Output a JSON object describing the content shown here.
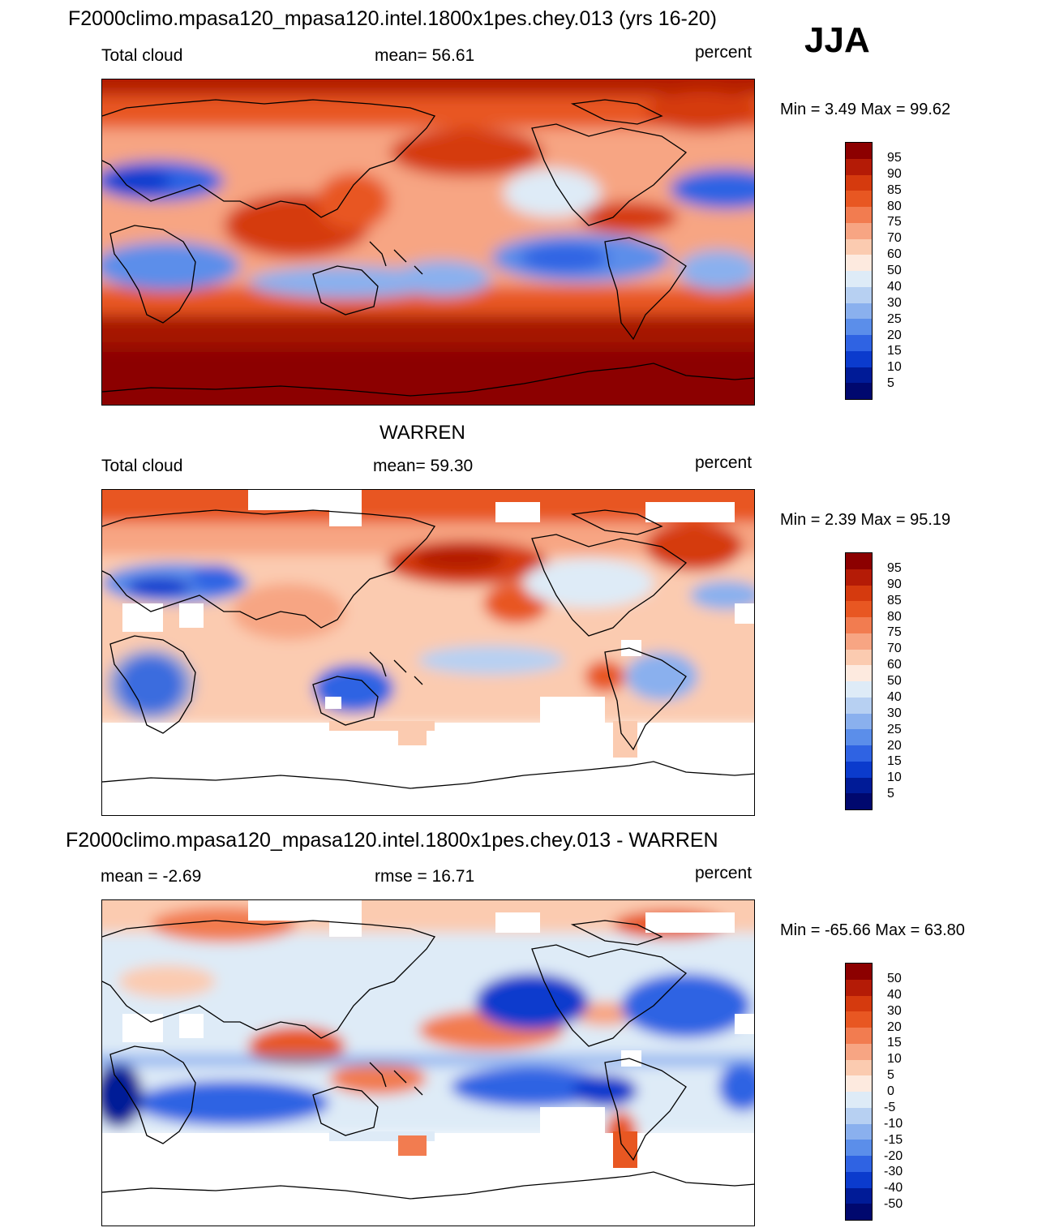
{
  "header": {
    "title": "F2000climo.mpasa120_mpasa120.intel.1800x1pes.chey.013 (yrs 16-20)",
    "season": "JJA"
  },
  "panels": [
    {
      "id": "model",
      "variable": "Total cloud",
      "stat": "mean=  56.61",
      "units": "percent",
      "minmax": "Min =   3.49 Max =  99.62"
    },
    {
      "id": "obs",
      "title": "WARREN",
      "variable": "Total cloud",
      "stat": "mean=  59.30",
      "units": "percent",
      "minmax": "Min =   2.39 Max =  95.19"
    },
    {
      "id": "diff",
      "title": "F2000climo.mpasa120_mpasa120.intel.1800x1pes.chey.013 - WARREN",
      "stat": "mean =  -2.69",
      "stat2": "rmse =  16.71",
      "units": "percent",
      "minmax": "Min = -65.66 Max =  63.80"
    }
  ],
  "chart_data": [
    {
      "type": "heatmap",
      "title": "F2000climo.mpasa120_mpasa120.intel.1800x1pes.chey.013 (yrs 16-20)",
      "variable": "Total cloud",
      "season": "JJA",
      "units": "percent",
      "mean": 56.61,
      "min": 3.49,
      "max": 99.62,
      "colorbar_levels": [
        95,
        90,
        85,
        80,
        75,
        70,
        60,
        50,
        40,
        30,
        25,
        20,
        15,
        10,
        5
      ],
      "colorbar_colors": [
        "#8c0000",
        "#b41b06",
        "#d53a0e",
        "#e85722",
        "#f27c50",
        "#f7a583",
        "#fbcbb0",
        "#fdeadf",
        "#deebf7",
        "#b7d0f2",
        "#8ab0ee",
        "#5b8eea",
        "#2f63e3",
        "#0b3bcd",
        "#001b97",
        "#00086e"
      ]
    },
    {
      "type": "heatmap",
      "title": "WARREN",
      "variable": "Total cloud",
      "units": "percent",
      "mean": 59.3,
      "min": 2.39,
      "max": 95.19,
      "colorbar_levels": [
        95,
        90,
        85,
        80,
        75,
        70,
        60,
        50,
        40,
        30,
        25,
        20,
        15,
        10,
        5
      ],
      "colorbar_colors": [
        "#8c0000",
        "#b41b06",
        "#d53a0e",
        "#e85722",
        "#f27c50",
        "#f7a583",
        "#fbcbb0",
        "#fdeadf",
        "#deebf7",
        "#b7d0f2",
        "#8ab0ee",
        "#5b8eea",
        "#2f63e3",
        "#0b3bcd",
        "#001b97",
        "#00086e"
      ]
    },
    {
      "type": "heatmap",
      "title": "F2000climo.mpasa120_mpasa120.intel.1800x1pes.chey.013 - WARREN",
      "units": "percent",
      "mean": -2.69,
      "rmse": 16.71,
      "min": -65.66,
      "max": 63.8,
      "colorbar_levels": [
        50,
        40,
        30,
        20,
        15,
        10,
        5,
        0,
        -5,
        -10,
        -15,
        -20,
        -30,
        -40,
        -50
      ],
      "colorbar_colors": [
        "#8c0000",
        "#b41b06",
        "#d53a0e",
        "#e85722",
        "#f27c50",
        "#f7a583",
        "#fbcbb0",
        "#fdeadf",
        "#deebf7",
        "#b7d0f2",
        "#8ab0ee",
        "#5b8eea",
        "#2f63e3",
        "#0b3bcd",
        "#001b97",
        "#00086e"
      ]
    }
  ]
}
